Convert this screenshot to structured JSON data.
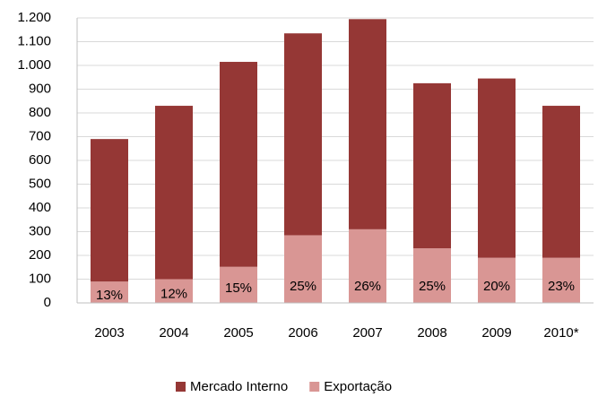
{
  "chart_data": {
    "type": "stacked_bar",
    "categories": [
      "2003",
      "2004",
      "2005",
      "2006",
      "2007",
      "2008",
      "2009",
      "2010*"
    ],
    "series": [
      {
        "name": "Exportação",
        "color": "#d99694",
        "values": [
          90,
          100,
          152,
          285,
          310,
          230,
          190,
          190
        ],
        "share_labels": [
          "13%",
          "12%",
          "15%",
          "25%",
          "26%",
          "25%",
          "20%",
          "23%"
        ]
      },
      {
        "name": "Mercado Interno",
        "color": "#953735",
        "values": [
          600,
          730,
          863,
          850,
          885,
          695,
          755,
          640
        ]
      }
    ],
    "ylim": [
      0,
      1200
    ],
    "yticks": [
      0,
      100,
      200,
      300,
      400,
      500,
      600,
      700,
      800,
      900,
      {
        "value": 1000,
        "label": "1.000"
      },
      {
        "value": 1100,
        "label": "1.100"
      },
      {
        "value": 1200,
        "label": "1.200"
      }
    ],
    "grid": true
  }
}
